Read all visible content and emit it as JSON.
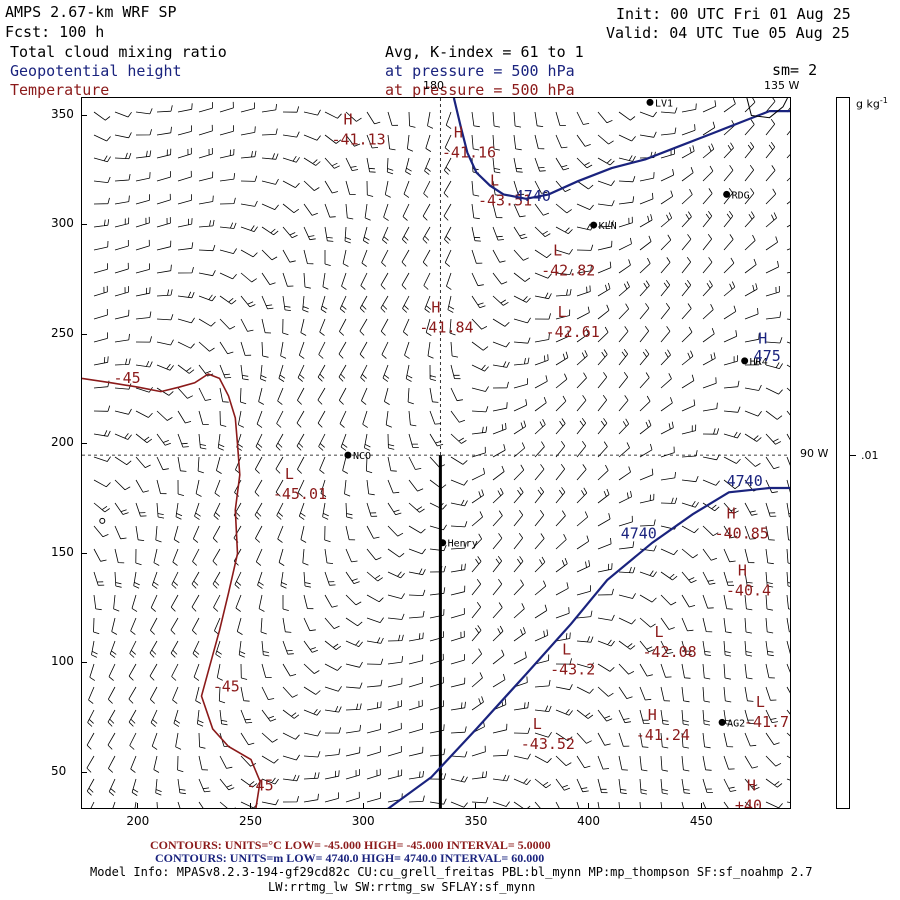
{
  "header": {
    "left_line1": "AMPS 2.67-km WRF SP",
    "left_line2": "Fcst:  100 h",
    "field1": "Total cloud mixing ratio",
    "field2": "Geopotential height",
    "field3": "Temperature",
    "avg": "Avg, K-index =  61 to   1",
    "pressure1": "at pressure =  500 hPa",
    "pressure2": "at pressure =  500 hPa",
    "init": "Init: 00 UTC Fri 01 Aug 25",
    "valid": "Valid: 04 UTC Tue 05 Aug 25",
    "sm": "sm= 2"
  },
  "map": {
    "lon_label_top_180": "180",
    "lon_label_top_135": "135 W",
    "lon_label_right_90": "90 W",
    "stations": [
      {
        "name": "LV1",
        "x": 427,
        "y": 356
      },
      {
        "name": "RDG",
        "x": 461,
        "y": 314
      },
      {
        "name": "KLN",
        "x": 402,
        "y": 300
      },
      {
        "name": "HR4",
        "x": 469,
        "y": 238
      },
      {
        "name": "NCO",
        "x": 293,
        "y": 195
      },
      {
        "name": "Henry",
        "x": 335,
        "y": 155
      },
      {
        "name": "AG2",
        "x": 459,
        "y": 73
      }
    ],
    "temp_labels": [
      {
        "letter": "H",
        "value": "-41.13",
        "x": 291,
        "y": 346
      },
      {
        "letter": "H",
        "value": "-41.16",
        "x": 340,
        "y": 340
      },
      {
        "letter": "L",
        "value": "-43.51",
        "x": 356,
        "y": 318
      },
      {
        "letter": "L",
        "value": "-42.82",
        "x": 384,
        "y": 286
      },
      {
        "letter": "H",
        "value": "-41.84",
        "x": 330,
        "y": 260
      },
      {
        "letter": "L",
        "value": "-42.61",
        "x": 386,
        "y": 258
      },
      {
        "letter": "L",
        "value": "-45.01",
        "x": 265,
        "y": 184
      },
      {
        "letter": "H",
        "value": "-40.85",
        "x": 461,
        "y": 166
      },
      {
        "letter": "H",
        "value": "-40.4",
        "x": 466,
        "y": 140
      },
      {
        "letter": "L",
        "value": "-42.08",
        "x": 429,
        "y": 112
      },
      {
        "letter": "L",
        "value": "-43.2",
        "x": 388,
        "y": 104
      },
      {
        "letter": "L",
        "value": "-41.7",
        "x": 474,
        "y": 80
      },
      {
        "letter": "H",
        "value": "-41.24",
        "x": 426,
        "y": 74
      },
      {
        "letter": "L",
        "value": "-43.52",
        "x": 375,
        "y": 70
      },
      {
        "letter": "H",
        "value": "+40",
        "x": 470,
        "y": 42
      }
    ],
    "temp_contour_labels": [
      {
        "value": "-45",
        "x": 189,
        "y": 228
      },
      {
        "value": "-45",
        "x": 233,
        "y": 87
      },
      {
        "value": "-45",
        "x": 248,
        "y": 42
      }
    ],
    "height_labels": [
      {
        "value": "4740",
        "x": 367,
        "y": 311
      },
      {
        "value": "4740",
        "x": 461,
        "y": 181
      },
      {
        "value": "4740",
        "x": 414,
        "y": 157
      },
      {
        "value": "H",
        "x": 475,
        "y": 246
      },
      {
        "value": "475",
        "x": 473,
        "y": 238
      }
    ]
  },
  "chart_data": {
    "type": "map",
    "x_range": [
      175,
      490
    ],
    "y_range": [
      33,
      358
    ],
    "x_ticks": [
      "200",
      "250",
      "300",
      "350",
      "400",
      "450"
    ],
    "y_ticks": [
      "50",
      "100",
      "150",
      "200",
      "250",
      "300",
      "350"
    ],
    "x_tick_values": [
      200,
      250,
      300,
      350,
      400,
      450
    ],
    "y_tick_values": [
      50,
      100,
      150,
      200,
      250,
      300,
      350
    ],
    "cross_section_x": 334,
    "cross_section_y_range": [
      33,
      195
    ],
    "dashed_lines": {
      "lon_180_x": 334,
      "lat_90W_y": 195
    }
  },
  "colorbar": {
    "unit_label": "g kg",
    "unit_exp": "-1",
    "tick_label": ".01"
  },
  "footer": {
    "contours_temp": "CONTOURS:  UNITS=°C  LOW= -45.000      HIGH= -45.000      INTERVAL=    5.0000",
    "contours_height": "CONTOURS:  UNITS=m  LOW=  4740.0      HIGH=  4740.0      INTERVAL=    60.000",
    "model_info1": "Model Info: MPASv8.2.3-194-gf29cd82c CU:cu_grell_freitas PBL:bl_mynn MP:mp_thompson SF:sf_noahmp 2.7",
    "model_info2": "LW:rrtmg_lw SW:rrtmg_sw SFLAY:sf_mynn"
  },
  "colors": {
    "temperature": "#8b1a1a",
    "height": "#1a237e",
    "text": "#000000"
  }
}
